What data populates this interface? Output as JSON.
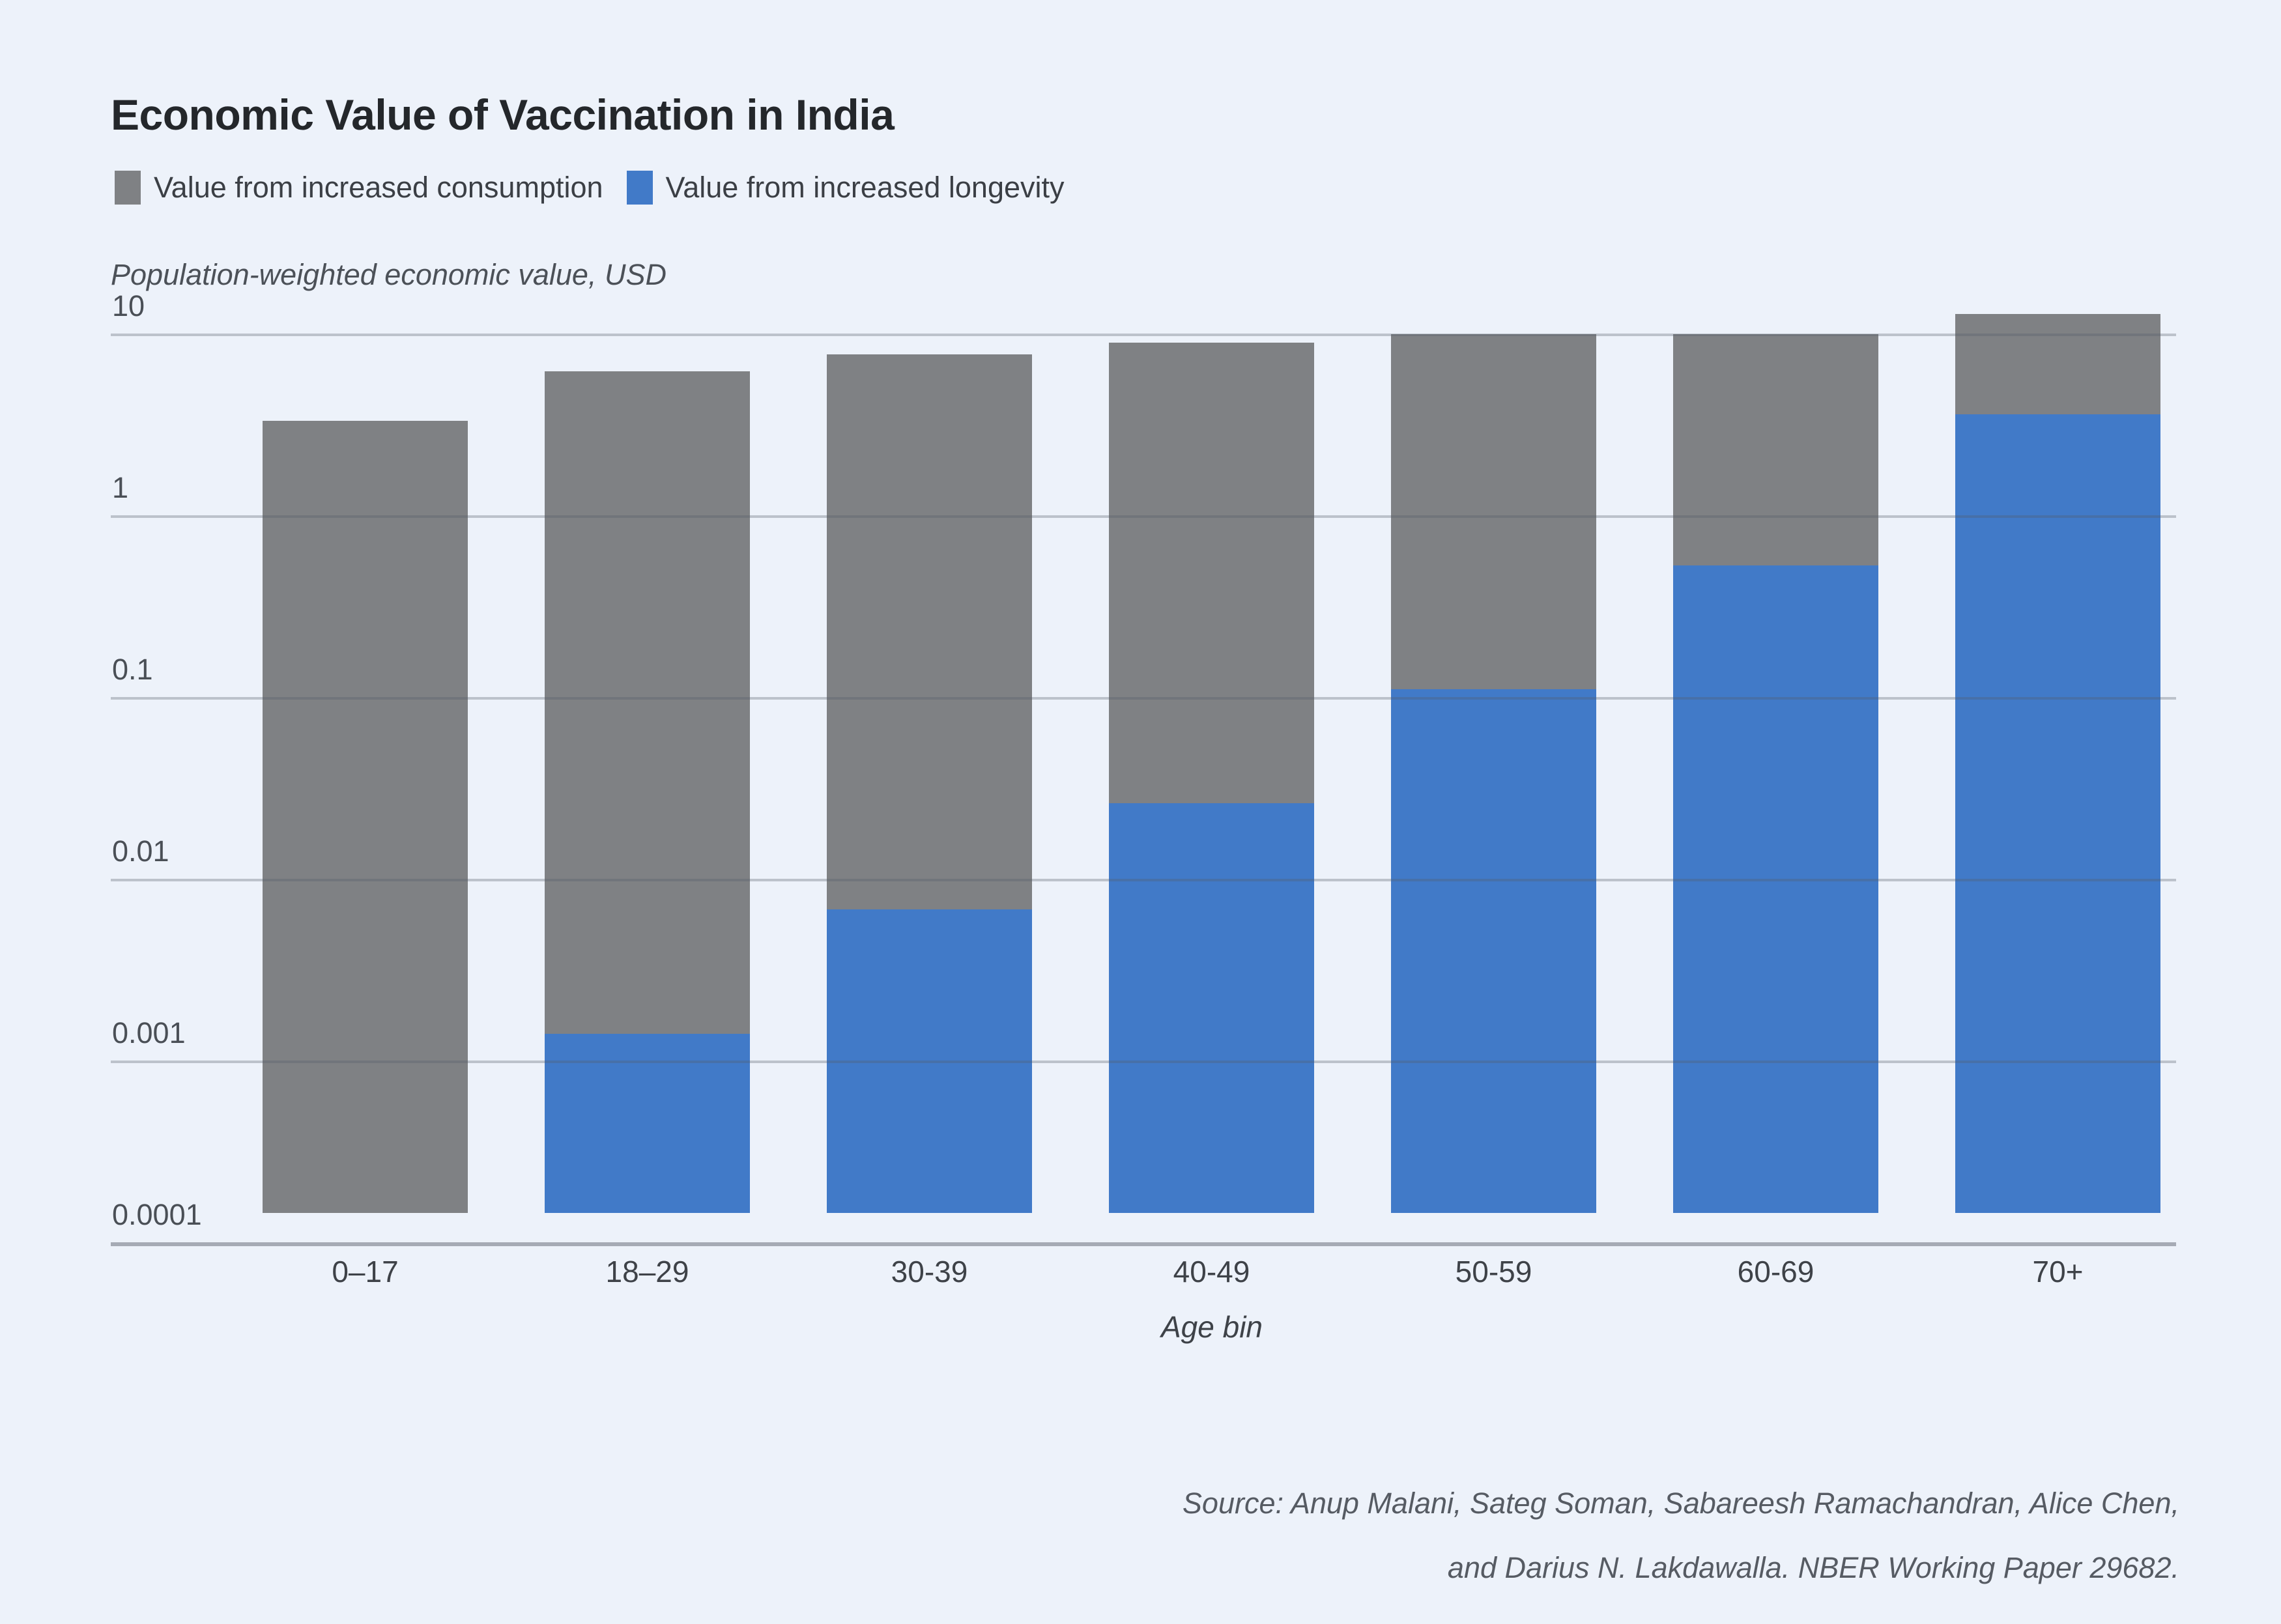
{
  "title": "Economic Value of Vaccination in India",
  "legend": [
    {
      "label": "Value from increased consumption",
      "color": "#7f8184"
    },
    {
      "label": "Value from increased longevity",
      "color": "#417ac8"
    }
  ],
  "y_axis": {
    "title": "Population-weighted economic value, USD",
    "scale": "log",
    "min": 0.0001,
    "max": 10,
    "tick_labels": [
      "10",
      "1",
      "0.1",
      "0.01",
      "0.001",
      "0.0001"
    ],
    "tick_values": [
      10,
      1,
      0.1,
      0.01,
      0.001,
      0.0001
    ]
  },
  "x_axis": {
    "title": "Age bin",
    "categories": [
      "0–17",
      "18–29",
      "30-39",
      "40-49",
      "50-59",
      "60-69",
      "70+"
    ]
  },
  "source_lines": [
    "Source: Anup Malani, Sateg Soman, Sabareesh Ramachandran, Alice Chen,",
    "and Darius N. Lakdawalla. NBER Working Paper 29682."
  ],
  "chart_data": {
    "type": "bar",
    "stacked": true,
    "title": "Economic Value of Vaccination in India",
    "subtitle": "Population-weighted economic value, USD",
    "xlabel": "Age bin",
    "ylabel": "Population-weighted economic value, USD",
    "y_scale": "log",
    "ylim": [
      0.0001,
      10
    ],
    "grid": "horizontal",
    "legend_position": "top-left",
    "categories": [
      "0–17",
      "18–29",
      "30-39",
      "40-49",
      "50-59",
      "60-69",
      "70+"
    ],
    "series": [
      {
        "name": "Value from increased longevity",
        "color": "#417ac8",
        "stack_position": "bottom",
        "values": [
          0,
          0.0014,
          0.0068,
          0.026,
          0.11,
          0.53,
          3.6
        ]
      },
      {
        "name": "Value from increased consumption",
        "color": "#7f8184",
        "stack_position": "top",
        "values": [
          3.3,
          6.2,
          7.7,
          8.9,
          9.8,
          9.4,
          9.2
        ]
      }
    ],
    "stack_totals": [
      3.3,
      6.2,
      7.7,
      8.9,
      9.9,
      9.9,
      12.8
    ]
  }
}
